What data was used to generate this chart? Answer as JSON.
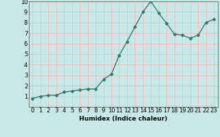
{
  "x": [
    0,
    1,
    2,
    3,
    4,
    5,
    6,
    7,
    8,
    9,
    10,
    11,
    12,
    13,
    14,
    15,
    16,
    17,
    18,
    19,
    20,
    21,
    22,
    23
  ],
  "y": [
    0.8,
    1.0,
    1.1,
    1.1,
    1.4,
    1.5,
    1.6,
    1.7,
    1.7,
    2.6,
    3.1,
    4.9,
    6.2,
    7.6,
    9.0,
    10.0,
    8.9,
    7.9,
    6.9,
    6.8,
    6.5,
    6.8,
    8.0,
    8.3
  ],
  "line_color": "#2e7d6e",
  "marker": "D",
  "marker_size": 2.0,
  "bg_color": "#c8e8e8",
  "grid_color": "#f5b8b8",
  "xlabel": "Humidex (Indice chaleur)",
  "xlim": [
    -0.5,
    23.5
  ],
  "ylim": [
    0,
    10
  ],
  "xticks": [
    0,
    1,
    2,
    3,
    4,
    5,
    6,
    7,
    8,
    9,
    10,
    11,
    12,
    13,
    14,
    15,
    16,
    17,
    18,
    19,
    20,
    21,
    22,
    23
  ],
  "yticks": [
    1,
    2,
    3,
    4,
    5,
    6,
    7,
    8,
    9,
    10
  ],
  "xlabel_fontsize": 6.5,
  "tick_fontsize": 6.0,
  "line_width": 1.0
}
